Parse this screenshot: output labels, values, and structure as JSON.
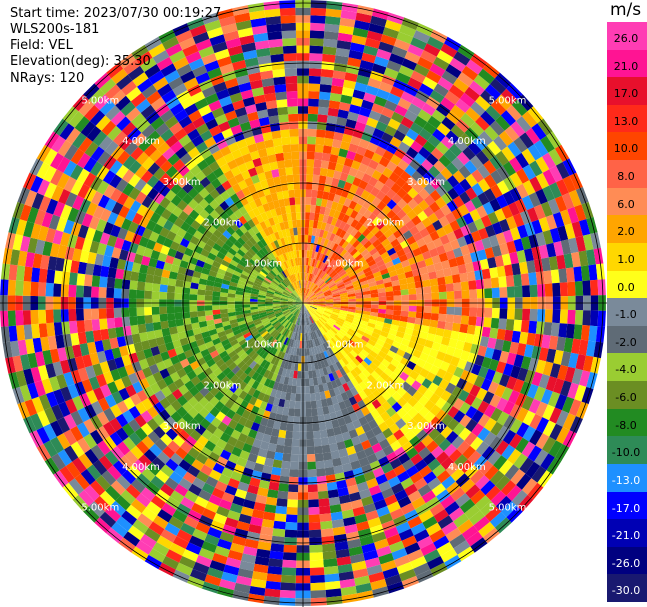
{
  "header": {
    "start_time": "Start time: 2023/07/30 00:19:27",
    "instrument": "WLS200s-181",
    "field": "Field: VEL",
    "elevation": "Elevation(deg): 35.30",
    "nrays": "NRays: 120"
  },
  "colorbar": {
    "unit": "m/s",
    "ticks": [
      "26.0",
      "21.0",
      "17.0",
      "13.0",
      "10.0",
      "8.0",
      "6.0",
      "2.0",
      "1.0",
      "0.0",
      "-1.0",
      "-2.0",
      "-4.0",
      "-6.0",
      "-8.0",
      "-10.0",
      "-13.0",
      "-17.0",
      "-21.0",
      "-26.0",
      "-30.0"
    ],
    "colors": [
      "#ff3db4",
      "#ff1493",
      "#e8102c",
      "#ff2a1a",
      "#ff4500",
      "#ff6347",
      "#ff8c55",
      "#ffa500",
      "#ffd700",
      "#ffff1a",
      "#7a8a9a",
      "#5f6b76",
      "#9acd32",
      "#6b8e23",
      "#228b22",
      "#2e8b57",
      "#1e90ff",
      "#0000ff",
      "#0000b4",
      "#000080",
      "#191970"
    ]
  },
  "range_labels": [
    "1.00km",
    "2.00km",
    "3.00km",
    "4.00km",
    "5.00km"
  ],
  "colors": {
    "ring_line": "#000000",
    "label_text": "#ffffff"
  }
}
